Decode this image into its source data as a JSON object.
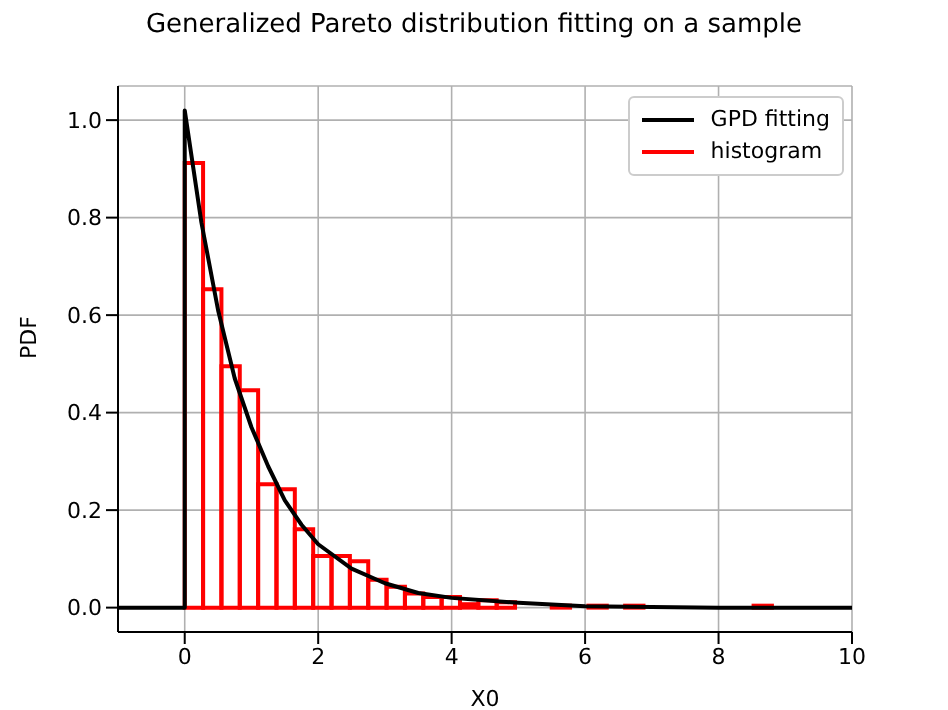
{
  "chart_data": {
    "type": "histogram",
    "title": "Generalized Pareto distribution fitting on a sample",
    "xlabel": "X0",
    "ylabel": "PDF",
    "bins": [
      0,
      0.275,
      0.55,
      0.825,
      1.1,
      1.375,
      1.65,
      1.925,
      2.2,
      2.475,
      2.75,
      3.025,
      3.3,
      3.575,
      3.85,
      4.125,
      4.4,
      4.675,
      4.95,
      5.225,
      5.5,
      5.775,
      6.05,
      6.325,
      6.6,
      6.875,
      7.15,
      7.425,
      7.7,
      7.975,
      8.25,
      8.525,
      8.8
    ],
    "series": [
      {
        "name": "GPD fitting",
        "type": "line",
        "color": "#000000",
        "x": [
          -1,
          0,
          0,
          0.25,
          0.5,
          0.75,
          1,
          1.25,
          1.5,
          1.75,
          2,
          2.5,
          3,
          3.5,
          4,
          5,
          6,
          8,
          10
        ],
        "values": [
          0,
          0,
          1.02,
          0.79,
          0.61,
          0.47,
          0.37,
          0.29,
          0.22,
          0.17,
          0.13,
          0.08,
          0.05,
          0.03,
          0.02,
          0.01,
          0.003,
          0,
          0
        ]
      },
      {
        "name": "histogram",
        "color": "#ff0000",
        "values": [
          0.912,
          0.653,
          0.495,
          0.446,
          0.253,
          0.243,
          0.161,
          0.106,
          0.106,
          0.095,
          0.057,
          0.043,
          0.029,
          0.022,
          0.022,
          0.007,
          0.015,
          0.011,
          0,
          0,
          0.004,
          0,
          0.004,
          0,
          0.004,
          0,
          0,
          0,
          0,
          0,
          0,
          0.004
        ]
      }
    ],
    "xlim": [
      -1,
      10
    ],
    "xticks": [
      0,
      2,
      4,
      6,
      8,
      10
    ],
    "ylim": [
      -0.05,
      1.07
    ],
    "yticks": [
      {
        "value": 0,
        "label": "0.0"
      },
      {
        "value": 0.2,
        "label": "0.2"
      },
      {
        "value": 0.4,
        "label": "0.4"
      },
      {
        "value": 0.6,
        "label": "0.6"
      },
      {
        "value": 0.8,
        "label": "0.8"
      },
      {
        "value": 1,
        "label": "1.0"
      }
    ],
    "grid": true,
    "legend": "top right"
  }
}
